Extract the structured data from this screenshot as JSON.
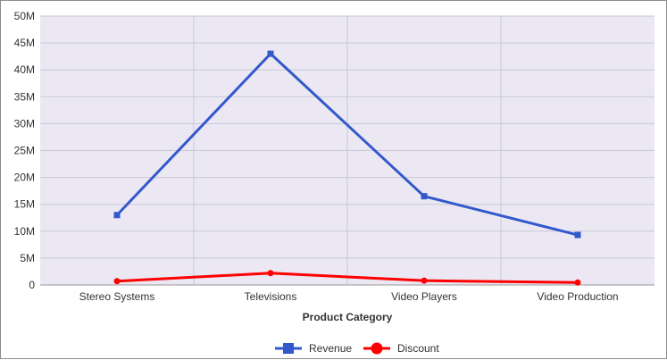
{
  "chart_data": {
    "type": "line",
    "categories": [
      "Stereo Systems",
      "Televisions",
      "Video Players",
      "Video Production"
    ],
    "series": [
      {
        "name": "Revenue",
        "values": [
          13000000,
          43000000,
          16500000,
          9300000
        ],
        "color": "#3358cc",
        "marker": "square"
      },
      {
        "name": "Discount",
        "values": [
          700000,
          2200000,
          800000,
          450000
        ],
        "color": "#ff0000",
        "marker": "circle"
      }
    ],
    "xlabel": "Product Category",
    "ylabel": "",
    "ylim": [
      0,
      50000000
    ],
    "yticks": [
      "0",
      "5M",
      "10M",
      "15M",
      "20M",
      "25M",
      "30M",
      "35M",
      "40M",
      "45M",
      "50M"
    ],
    "grid": true,
    "legend": "bottom-center",
    "plot_background": "#ebe8f4",
    "grid_color": "#c9c7d6"
  }
}
